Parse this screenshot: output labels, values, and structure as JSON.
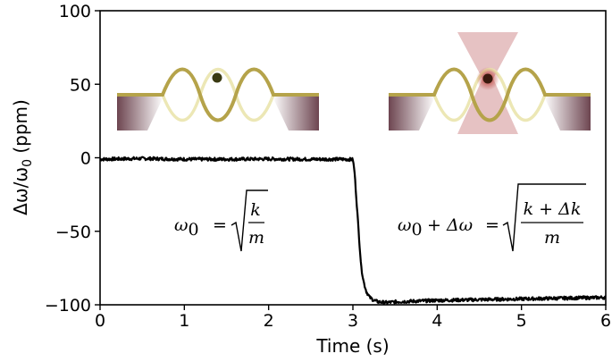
{
  "chart_data": {
    "type": "line",
    "title": "",
    "xlabel": "Time (s)",
    "ylabel": "Δω/ω",
    "ylabel_subscript": "0",
    "ylabel_unit": " (ppm)",
    "xlim": [
      0,
      6
    ],
    "ylim": [
      -100,
      100
    ],
    "xticks": [
      "0",
      "1",
      "2",
      "3",
      "4",
      "5",
      "6"
    ],
    "yticks": [
      "100",
      "50",
      "0",
      "−50",
      "−100"
    ],
    "grid": false,
    "legend": "none",
    "series": [
      {
        "color": "#000000",
        "x": [
          0,
          0.5,
          1,
          1.5,
          2,
          2.5,
          2.9,
          3.0,
          3.02,
          3.05,
          3.08,
          3.1,
          3.13,
          3.16,
          3.2,
          3.25,
          3.3,
          3.4,
          3.5,
          3.75,
          4,
          4.5,
          5,
          5.5,
          6
        ],
        "y": [
          -1,
          -0.5,
          -1,
          -1,
          -0.8,
          -1,
          -1,
          -1.2,
          -10,
          -35,
          -60,
          -75,
          -85,
          -91,
          -95,
          -97,
          -98,
          -98.5,
          -98,
          -97.5,
          -97,
          -96.5,
          -96,
          -95.5,
          -95
        ]
      }
    ],
    "annotations": {
      "left_eq": {
        "lhs": "ω",
        "lhs_sub": "0",
        "eq": "=",
        "num": "k",
        "den": "m"
      },
      "right_eq": {
        "lhs": "ω",
        "lhs_sub": "0",
        "plus": "+ Δω",
        "eq": "=",
        "num": "k + Δk",
        "den": "m"
      }
    },
    "colors": {
      "string": "#b5a34a",
      "string_faint": "#ece7b5",
      "mass": "#3a3a12",
      "clamp": "#6d4550",
      "laser": "#c8787a"
    }
  }
}
